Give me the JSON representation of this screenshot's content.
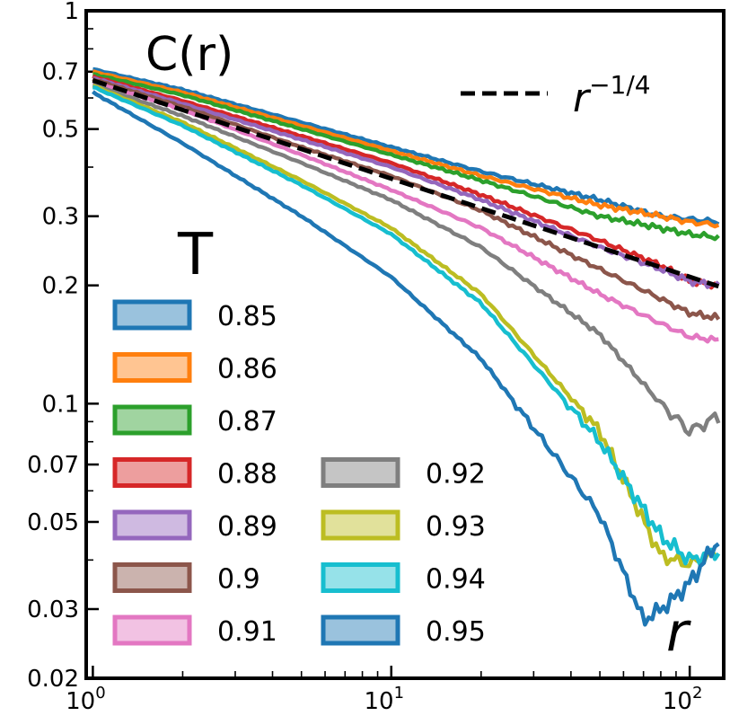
{
  "chart_data": {
    "type": "line",
    "xscale": "log",
    "yscale": "log",
    "xlim": [
      0.95,
      130
    ],
    "ylim": [
      0.02,
      1
    ],
    "title": "C(r)",
    "xlabel": "r",
    "ylabel": "",
    "legend_title": "T",
    "x_ticks": [
      {
        "value": 1,
        "base": "10",
        "exp": "0"
      },
      {
        "value": 10,
        "base": "10",
        "exp": "1"
      },
      {
        "value": 100,
        "base": "10",
        "exp": "2"
      }
    ],
    "y_ticks": [
      {
        "value": 1,
        "label": "1"
      },
      {
        "value": 0.7,
        "label": "0.7"
      },
      {
        "value": 0.5,
        "label": "0.5"
      },
      {
        "value": 0.3,
        "label": "0.3"
      },
      {
        "value": 0.2,
        "label": "0.2"
      },
      {
        "value": 0.1,
        "label": "0.1"
      },
      {
        "value": 0.07,
        "label": "0.07"
      },
      {
        "value": 0.05,
        "label": "0.05"
      },
      {
        "value": 0.03,
        "label": "0.03"
      },
      {
        "value": 0.02,
        "label": "0.02"
      }
    ],
    "reference_line": {
      "label_base": "r",
      "label_exp": "−1/4",
      "exponent": -0.25,
      "amplitude": 0.665,
      "color": "#000000",
      "style": "dashed"
    },
    "series": [
      {
        "name": "0.85",
        "color": "#1f77b4",
        "x": [
          1,
          2,
          5,
          10,
          20,
          50,
          80,
          100,
          125
        ],
        "values": [
          0.71,
          0.63,
          0.52,
          0.45,
          0.39,
          0.33,
          0.3,
          0.295,
          0.29
        ]
      },
      {
        "name": "0.86",
        "color": "#ff7f0e",
        "x": [
          1,
          2,
          5,
          10,
          20,
          50,
          80,
          100,
          125
        ],
        "values": [
          0.7,
          0.62,
          0.51,
          0.44,
          0.38,
          0.32,
          0.3,
          0.29,
          0.285
        ]
      },
      {
        "name": "0.87",
        "color": "#2ca02c",
        "x": [
          1,
          2,
          5,
          10,
          20,
          50,
          80,
          100,
          125
        ],
        "values": [
          0.69,
          0.61,
          0.5,
          0.43,
          0.37,
          0.3,
          0.28,
          0.27,
          0.265
        ]
      },
      {
        "name": "0.88",
        "color": "#d62728",
        "x": [
          1,
          2,
          5,
          10,
          20,
          50,
          80,
          100,
          125
        ],
        "values": [
          0.68,
          0.59,
          0.48,
          0.41,
          0.34,
          0.26,
          0.225,
          0.205,
          0.2
        ]
      },
      {
        "name": "0.89",
        "color": "#9467bd",
        "x": [
          1,
          2,
          5,
          10,
          20,
          50,
          80,
          100,
          125
        ],
        "values": [
          0.675,
          0.58,
          0.47,
          0.4,
          0.33,
          0.25,
          0.22,
          0.205,
          0.2
        ]
      },
      {
        "name": "0.9",
        "color": "#8c564b",
        "x": [
          1,
          2,
          5,
          10,
          20,
          50,
          80,
          100,
          125
        ],
        "values": [
          0.67,
          0.57,
          0.45,
          0.38,
          0.31,
          0.22,
          0.185,
          0.17,
          0.165
        ]
      },
      {
        "name": "0.91",
        "color": "#e377c2",
        "x": [
          1,
          2,
          5,
          10,
          20,
          50,
          80,
          100,
          125
        ],
        "values": [
          0.66,
          0.56,
          0.43,
          0.35,
          0.28,
          0.19,
          0.16,
          0.148,
          0.145
        ]
      },
      {
        "name": "0.92",
        "color": "#7f7f7f",
        "x": [
          1,
          2,
          5,
          10,
          20,
          50,
          80,
          100,
          125
        ],
        "values": [
          0.65,
          0.54,
          0.41,
          0.33,
          0.25,
          0.15,
          0.1,
          0.085,
          0.093
        ]
      },
      {
        "name": "0.93",
        "color": "#bcbd22",
        "x": [
          1,
          2,
          5,
          10,
          20,
          50,
          80,
          100,
          125
        ],
        "values": [
          0.645,
          0.52,
          0.37,
          0.28,
          0.19,
          0.085,
          0.041,
          0.039,
          0.042
        ]
      },
      {
        "name": "0.94",
        "color": "#17becf",
        "x": [
          1,
          2,
          5,
          10,
          20,
          50,
          80,
          100,
          125
        ],
        "values": [
          0.64,
          0.51,
          0.36,
          0.27,
          0.18,
          0.08,
          0.046,
          0.04,
          0.042
        ]
      },
      {
        "name": "0.95",
        "color": "#1f77b4",
        "x": [
          1,
          2,
          5,
          10,
          20,
          50,
          70,
          85,
          100,
          125
        ],
        "values": [
          0.62,
          0.46,
          0.3,
          0.21,
          0.13,
          0.052,
          0.028,
          0.031,
          0.035,
          0.045
        ]
      }
    ]
  }
}
